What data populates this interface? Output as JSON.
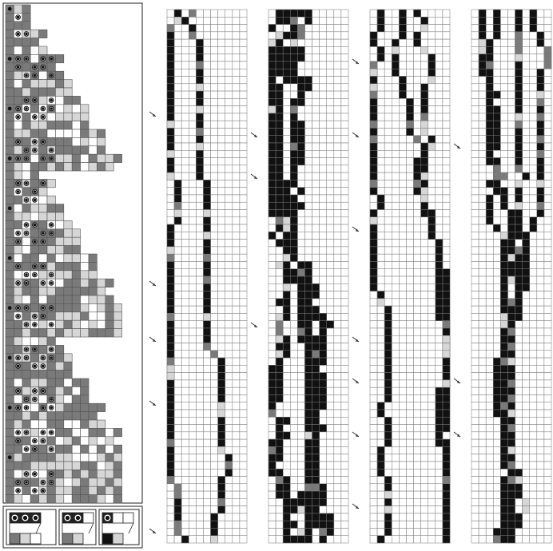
{
  "figure": {
    "description_free": true,
    "palette": {
      "background": "#ffffff",
      "grid_line": "#555555",
      "cell_white": "#ffffff",
      "cell_light": "#d6d6d6",
      "cell_mid": "#7a7a7a",
      "cell_black": "#111111",
      "dot": "#111111",
      "arrow": "#333333"
    },
    "left_panel": {
      "label": "",
      "cols": 15,
      "rows": 60,
      "dot_rows_note": ""
    },
    "legend": {
      "items": [
        {
          "name": "rule-a",
          "top_cells": [
            "dot",
            "dot",
            "dot"
          ],
          "bottom_cell": "mid"
        },
        {
          "name": "rule-b",
          "top_cells": [
            "dot",
            "dot",
            "empty"
          ],
          "bottom_cell": "mid"
        },
        {
          "name": "rule-c",
          "top_cells": [
            "dot",
            "empty",
            "empty"
          ],
          "bottom_cell": "black"
        }
      ]
    },
    "strips": [
      {
        "name": "strip-1",
        "cols": 11,
        "rows": 72,
        "arrows": 5
      },
      {
        "name": "strip-2",
        "cols": 11,
        "rows": 72,
        "arrows": 3
      },
      {
        "name": "strip-3",
        "cols": 11,
        "rows": 72,
        "arrows": 6
      },
      {
        "name": "strip-4",
        "cols": 11,
        "rows": 72,
        "arrows": 3
      }
    ]
  }
}
